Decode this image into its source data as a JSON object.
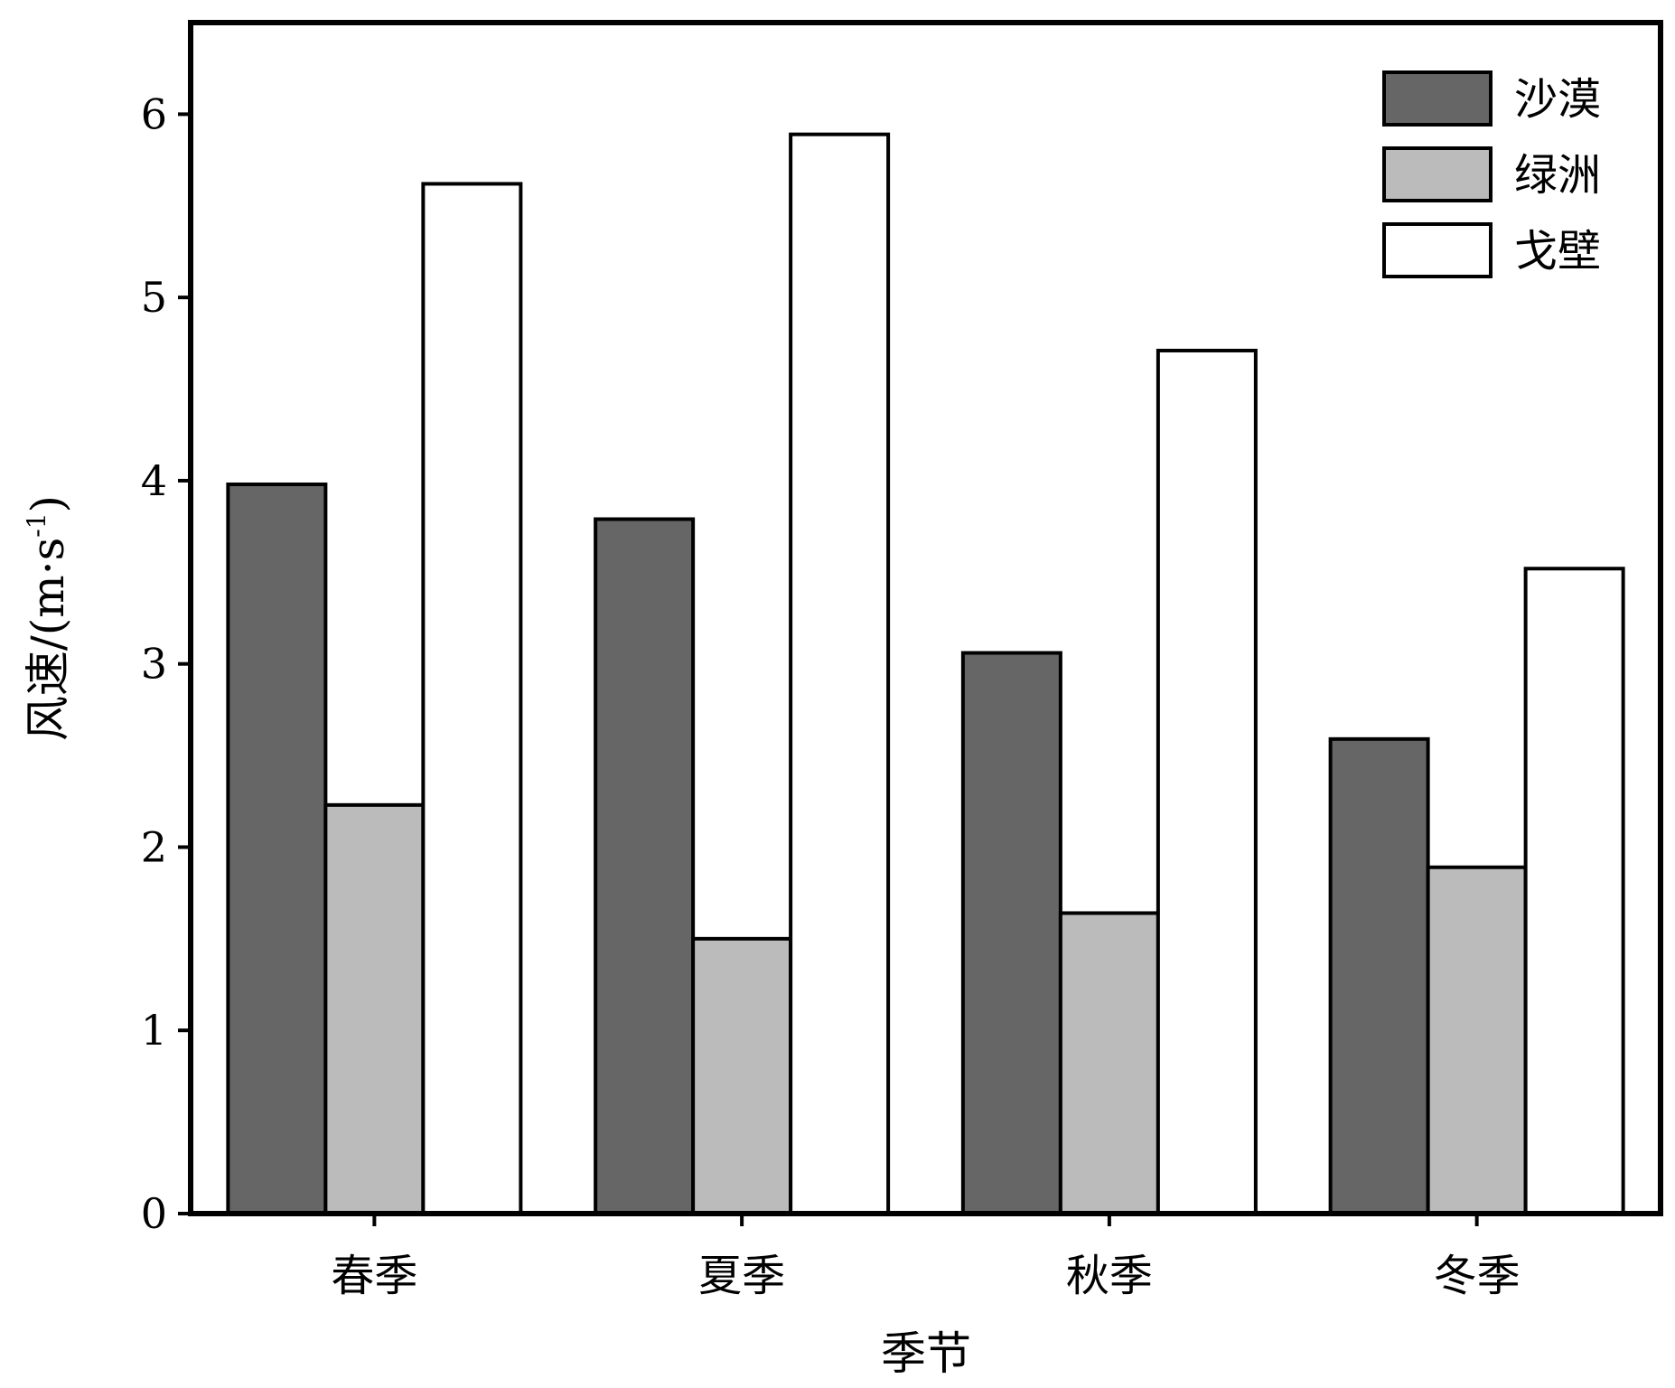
{
  "chart_data": {
    "type": "bar",
    "categories": [
      "春季",
      "夏季",
      "秋季",
      "冬季"
    ],
    "series": [
      {
        "name": "沙漠",
        "values": [
          3.98,
          3.79,
          3.06,
          2.59
        ],
        "color": "#666666"
      },
      {
        "name": "绿洲",
        "values": [
          2.23,
          1.5,
          1.64,
          1.89
        ],
        "color": "#bbbbbb"
      },
      {
        "name": "戈壁",
        "values": [
          5.62,
          5.89,
          4.71,
          3.52
        ],
        "color": "#ffffff"
      }
    ],
    "xlabel": "季节",
    "ylabel": {
      "main": "风速/(m·s",
      "sup": "-1",
      "close": ")"
    },
    "ylim": [
      0,
      6.5
    ],
    "yticks": [
      "0",
      "1",
      "2",
      "3",
      "4",
      "5",
      "6"
    ],
    "grid": false,
    "legend_position": "top-right"
  }
}
